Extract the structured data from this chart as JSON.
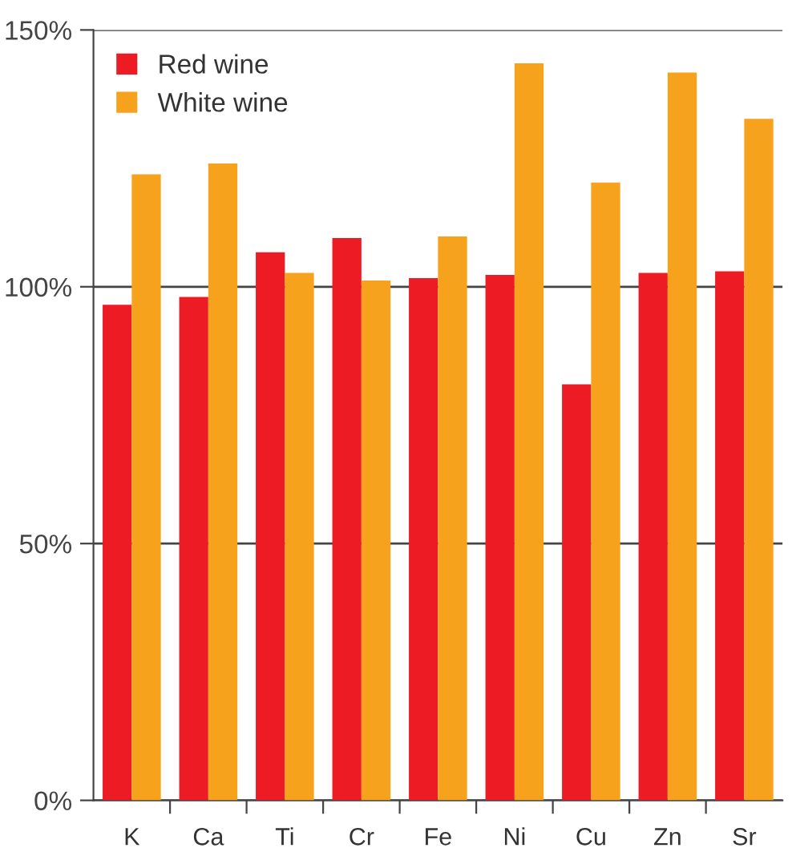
{
  "chart_data": {
    "type": "bar",
    "categories": [
      "K",
      "Ca",
      "Ti",
      "Cr",
      "Fe",
      "Ni",
      "Cu",
      "Zn",
      "Sr"
    ],
    "series": [
      {
        "name": "Red wine",
        "color": "#ed1c24",
        "values": [
          96.5,
          98,
          106.7,
          109.5,
          101.7,
          102.3,
          81,
          102.7,
          103
        ]
      },
      {
        "name": "White wine",
        "color": "#f7a21c",
        "values": [
          121.9,
          124,
          102.7,
          101.2,
          109.8,
          143.5,
          120.3,
          141.7,
          132.7
        ]
      }
    ],
    "ylim": [
      0,
      150
    ],
    "yticks": [
      {
        "value": 0,
        "label": "0%"
      },
      {
        "value": 50,
        "label": "50%"
      },
      {
        "value": 100,
        "label": "100%"
      },
      {
        "value": 150,
        "label": "150%"
      }
    ],
    "grid": "y",
    "legend": "top left"
  }
}
